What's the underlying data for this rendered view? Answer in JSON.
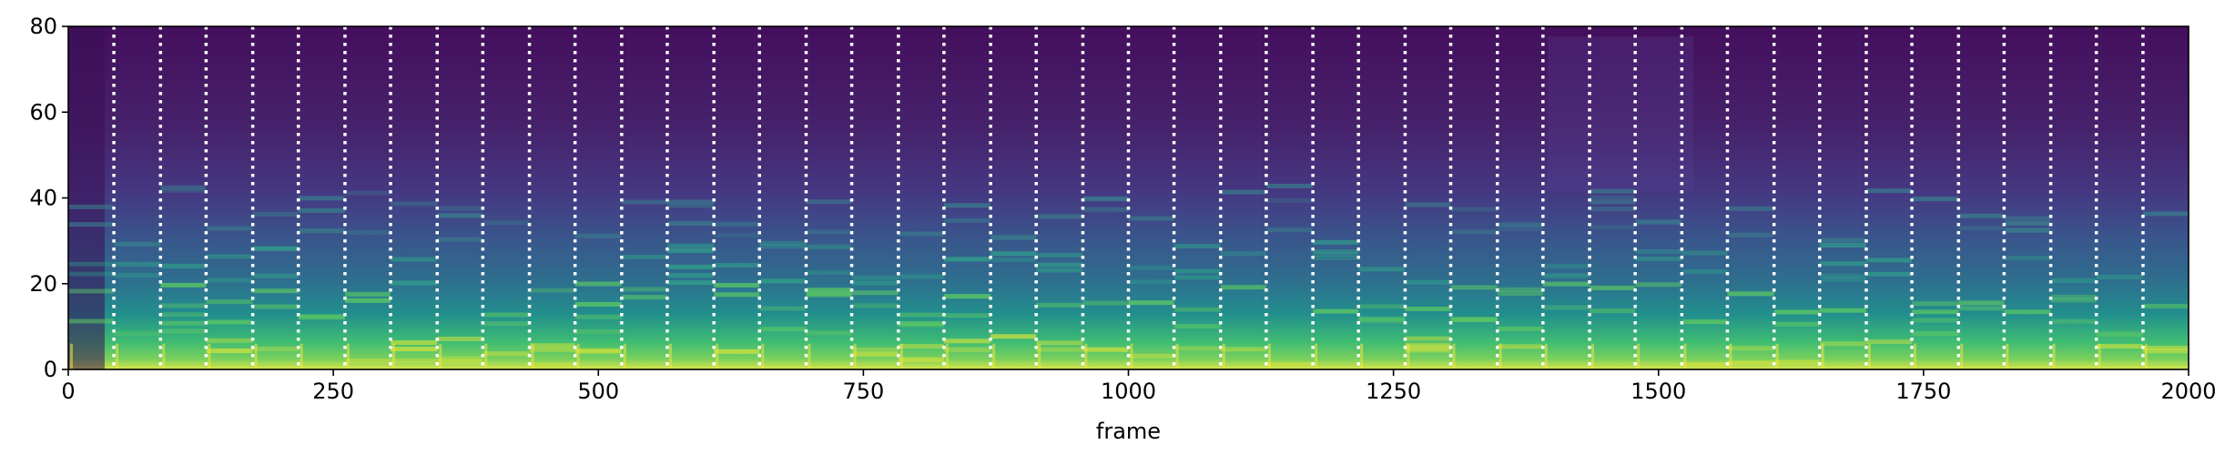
{
  "chart_data": {
    "type": "heatmap",
    "title": "",
    "xlabel": "frame",
    "ylabel": "",
    "xlim": [
      0,
      2000
    ],
    "ylim": [
      0,
      80
    ],
    "x_ticks": [
      0,
      250,
      500,
      750,
      1000,
      1250,
      1500,
      1750,
      2000
    ],
    "y_ticks": [
      0,
      20,
      40,
      60,
      80
    ],
    "x_tick_labels": [
      "0",
      "250",
      "500",
      "750",
      "1000",
      "1250",
      "1500",
      "1750",
      "2000"
    ],
    "y_tick_labels": [
      "0",
      "20",
      "40",
      "60",
      "80"
    ],
    "colormap": "viridis",
    "grid": false,
    "annotations": {
      "style": "vertical white dotted lines",
      "color": "#ffffff",
      "frames": [
        43,
        87,
        130,
        174,
        217,
        261,
        304,
        348,
        391,
        435,
        478,
        522,
        565,
        609,
        652,
        696,
        739,
        783,
        826,
        870,
        913,
        957,
        1000,
        1043,
        1087,
        1130,
        1174,
        1217,
        1261,
        1304,
        1348,
        1391,
        1435,
        1478,
        1522,
        1565,
        1609,
        1652,
        1696,
        1739,
        1783,
        1826,
        1870,
        1913,
        1957
      ]
    }
  }
}
